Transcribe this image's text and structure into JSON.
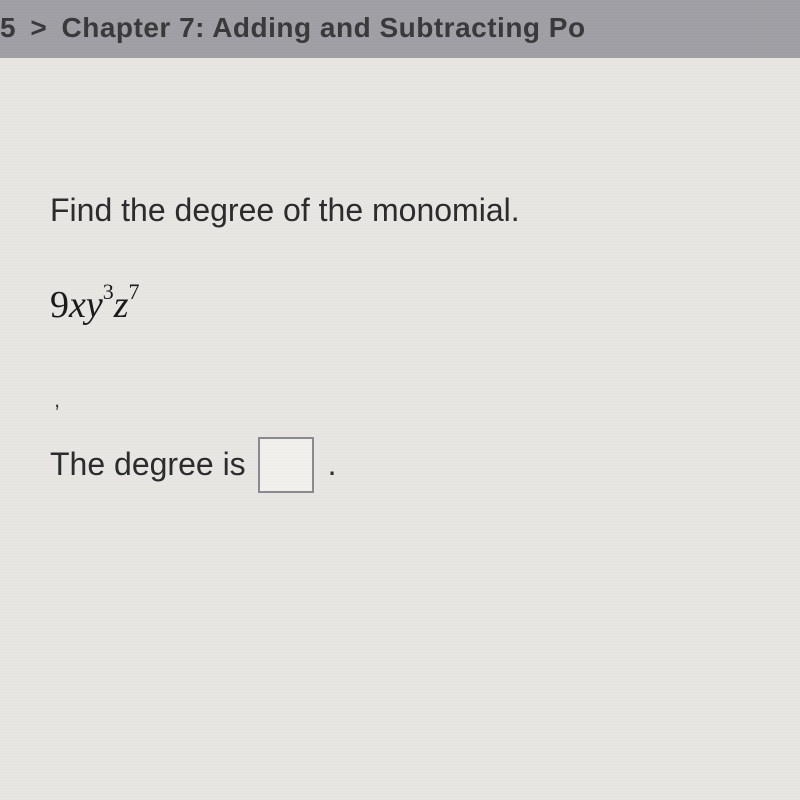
{
  "breadcrumb": {
    "prefix": "5",
    "arrow": ">",
    "chapter": "Chapter 7: Adding and Subtracting Po"
  },
  "question": {
    "instruction": "Find the degree of the monomial.",
    "expression": {
      "coefficient": "9",
      "var1": "x",
      "var2": "y",
      "exp2": "3",
      "var3": "z",
      "exp3": "7"
    },
    "cursor_mark": ",",
    "answer_label": "The degree is",
    "answer_value": "",
    "period": "."
  },
  "colors": {
    "breadcrumb_bg": "#a0a0a5",
    "breadcrumb_text": "#3a3a3d",
    "page_bg": "#e8e6e3",
    "text": "#2c2c2e",
    "input_border": "#8a8a90",
    "input_bg": "#f2f0ed"
  }
}
